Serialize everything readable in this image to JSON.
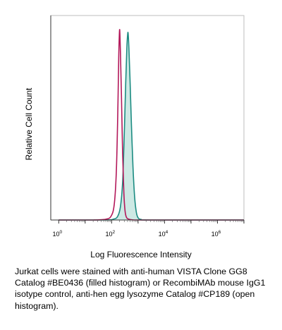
{
  "chart_data": {
    "type": "area",
    "title": "",
    "xlabel": "Log Fluorescence Intensity",
    "ylabel": "Relative Cell Count",
    "x_scale": "log",
    "xlim": [
      0.5,
      10000000
    ],
    "ylim": [
      0,
      1
    ],
    "grid": false,
    "x_ticks": [
      {
        "base": "10",
        "exp": "0",
        "value": 1
      },
      {
        "base": "10",
        "exp": "2",
        "value": 100
      },
      {
        "base": "10",
        "exp": "4",
        "value": 10000
      },
      {
        "base": "10",
        "exp": "6",
        "value": 1000000
      }
    ],
    "series": [
      {
        "style": "open histogram",
        "color": "#b3185a",
        "x": [
          1,
          20,
          60,
          95,
          125,
          150,
          170,
          185,
          195,
          200,
          205,
          215,
          235,
          260,
          290,
          320,
          360,
          450,
          700,
          2000,
          10000000
        ],
        "y": [
          0,
          0,
          0.004,
          0.02,
          0.08,
          0.25,
          0.55,
          0.85,
          0.97,
          1.0,
          0.98,
          0.88,
          0.65,
          0.35,
          0.14,
          0.05,
          0.015,
          0.004,
          0,
          0,
          0
        ]
      },
      {
        "style": "filled histogram",
        "color": "#1c8c82",
        "fill": "#cde9e4",
        "x": [
          1,
          50,
          120,
          170,
          215,
          260,
          300,
          340,
          375,
          400,
          420,
          450,
          500,
          560,
          640,
          740,
          860,
          1000,
          1300,
          3000,
          10000000
        ],
        "y": [
          0,
          0,
          0.005,
          0.02,
          0.07,
          0.2,
          0.45,
          0.72,
          0.9,
          0.97,
          0.98,
          0.9,
          0.72,
          0.5,
          0.28,
          0.12,
          0.04,
          0.012,
          0.003,
          0,
          0
        ]
      }
    ]
  },
  "caption": "Jurkat cells were stained with anti-human VISTA Clone GG8 Catalog #BE0436 (filled histogram) or RecombiMAb mouse IgG1 isotype control, anti-hen egg lysozyme Catalog #CP189 (open histogram)."
}
